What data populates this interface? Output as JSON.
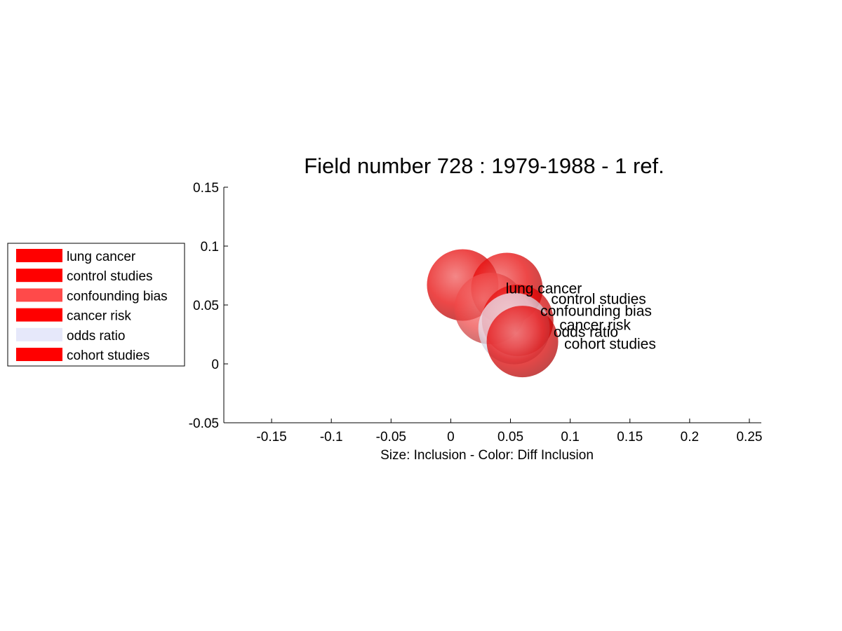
{
  "chart_data": {
    "type": "scatter",
    "title": "Field number 728 : 1979-1988  - 1 ref.",
    "xlabel": "Size: Inclusion - Color: Diff Inclusion",
    "ylabel": "",
    "xlim": [
      -0.19,
      0.26
    ],
    "ylim": [
      -0.05,
      0.15
    ],
    "xticks": [
      -0.15,
      -0.1,
      -0.05,
      0,
      0.05,
      0.1,
      0.15,
      0.2,
      0.25
    ],
    "xtick_labels": [
      "-0.15",
      "-0.1",
      "-0.05",
      "0",
      "0.05",
      "0.1",
      "0.15",
      "0.2",
      "0.25"
    ],
    "yticks": [
      -0.05,
      0,
      0.05,
      0.1,
      0.15
    ],
    "ytick_labels": [
      "-0.05",
      "0",
      "0.05",
      "0.1",
      "0.15"
    ],
    "grid": false,
    "legend_position": "left",
    "points": [
      {
        "label": "lung cancer",
        "x": 0.01,
        "y": 0.067,
        "size": 1.0,
        "color": "#e60000",
        "label_x": 0.046,
        "label_y": 0.064
      },
      {
        "label": "control studies",
        "x": 0.047,
        "y": 0.064,
        "size": 1.0,
        "color": "#e60000",
        "label_x": 0.084,
        "label_y": 0.055
      },
      {
        "label": "confounding bias",
        "x": 0.033,
        "y": 0.047,
        "size": 1.0,
        "color": "#f04848",
        "label_x": 0.075,
        "label_y": 0.045
      },
      {
        "label": "cancer risk",
        "x": 0.056,
        "y": 0.037,
        "size": 1.0,
        "color": "#e60000",
        "label_x": 0.091,
        "label_y": 0.033
      },
      {
        "label": "odds ratio",
        "x": 0.053,
        "y": 0.03,
        "size": 1.0,
        "color": "#e8ecfa",
        "label_x": 0.086,
        "label_y": 0.027
      },
      {
        "label": "cohort studies",
        "x": 0.06,
        "y": 0.019,
        "size": 1.0,
        "color": "#e60000",
        "label_x": 0.095,
        "label_y": 0.017
      }
    ],
    "legend": [
      {
        "label": "lung cancer",
        "color": "#ff0000"
      },
      {
        "label": "control studies",
        "color": "#ff0000"
      },
      {
        "label": "confounding bias",
        "color": "#ff4a4a"
      },
      {
        "label": "cancer risk",
        "color": "#ff0000"
      },
      {
        "label": "odds ratio",
        "color": "#e6e8fa"
      },
      {
        "label": "cohort studies",
        "color": "#ff0000"
      }
    ]
  }
}
